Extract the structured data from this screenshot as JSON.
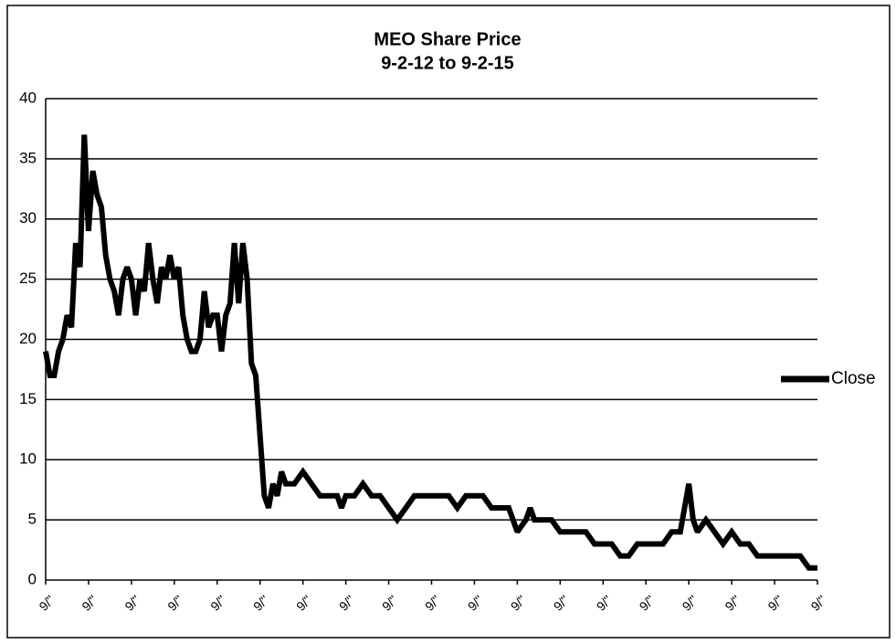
{
  "chart_data": {
    "type": "line",
    "title": "MEO Share Price",
    "subtitle": "9-2-12 to 9-2-15",
    "x": [
      0,
      0.5,
      1,
      1.5,
      2,
      2.5,
      3,
      3.5,
      4,
      4.5,
      5,
      5.5,
      6,
      6.5,
      7,
      7.5,
      8,
      8.5,
      9,
      9.5,
      10,
      10.5,
      11,
      11.5,
      12,
      12.5,
      13,
      13.5,
      14,
      14.5,
      15,
      15.5,
      16,
      16.5,
      17,
      17.5,
      18,
      18.5,
      19,
      19.5,
      20,
      20.5,
      21,
      21.5,
      22,
      22.5,
      23,
      23.5,
      24,
      24.5,
      25,
      25.5,
      26,
      26.5,
      27,
      27.5,
      28,
      29,
      30,
      31,
      32,
      33,
      34,
      34.5,
      35,
      36,
      37,
      38,
      39,
      40,
      41,
      42,
      43,
      44,
      45,
      46,
      47,
      48,
      49,
      50,
      51,
      52,
      53,
      54,
      55,
      56,
      56.5,
      57,
      58,
      59,
      60,
      61,
      62,
      63,
      64,
      65,
      66,
      67,
      68,
      69,
      70,
      71,
      72,
      73,
      74,
      75,
      75.5,
      76,
      77,
      78,
      79,
      80,
      81,
      82,
      83,
      84,
      85,
      86,
      87,
      88,
      89,
      90
    ],
    "series": [
      {
        "name": "Close",
        "color": "#000000",
        "values": [
          19,
          17,
          17,
          19,
          20,
          22,
          21,
          28,
          26,
          37,
          29,
          34,
          32,
          31,
          27,
          25,
          24,
          22,
          25,
          26,
          25,
          22,
          25,
          24,
          28,
          25,
          23,
          26,
          25,
          27,
          25,
          26,
          22,
          20,
          19,
          19,
          20,
          24,
          21,
          22,
          22,
          19,
          22,
          23,
          28,
          23,
          28,
          25,
          18,
          17,
          12,
          7,
          6,
          8,
          7,
          9,
          8,
          8,
          9,
          8,
          7,
          7,
          7,
          6,
          7,
          7,
          8,
          7,
          7,
          6,
          5,
          6,
          7,
          7,
          7,
          7,
          7,
          6,
          7,
          7,
          7,
          6,
          6,
          6,
          4,
          5,
          6,
          5,
          5,
          5,
          4,
          4,
          4,
          4,
          3,
          3,
          3,
          2,
          2,
          3,
          3,
          3,
          3,
          4,
          4,
          8,
          5,
          4,
          5,
          4,
          3,
          4,
          3,
          3,
          2,
          2,
          2,
          2,
          2,
          2,
          1,
          1
        ]
      }
    ],
    "xlim": [
      0,
      90
    ],
    "xticks": [
      {
        "value": 0,
        "label": "9/''"
      },
      {
        "value": 5,
        "label": "9/''"
      },
      {
        "value": 10,
        "label": "9/''"
      },
      {
        "value": 15,
        "label": "9/''"
      },
      {
        "value": 20,
        "label": "9/''"
      },
      {
        "value": 25,
        "label": "9/''"
      },
      {
        "value": 30,
        "label": "9/''"
      },
      {
        "value": 35,
        "label": "9/''"
      },
      {
        "value": 40,
        "label": "9/''"
      },
      {
        "value": 45,
        "label": "9/''"
      },
      {
        "value": 50,
        "label": "9/''"
      },
      {
        "value": 55,
        "label": "9/''"
      },
      {
        "value": 60,
        "label": "9/''"
      },
      {
        "value": 65,
        "label": "9/''"
      },
      {
        "value": 70,
        "label": "9/''"
      },
      {
        "value": 75,
        "label": "9/''"
      },
      {
        "value": 80,
        "label": "9/''"
      },
      {
        "value": 85,
        "label": "9/''"
      },
      {
        "value": 90,
        "label": "9/''"
      }
    ],
    "ylim": [
      0,
      40
    ],
    "yticks": [
      0,
      5,
      10,
      15,
      20,
      25,
      30,
      35,
      40
    ],
    "grid": true,
    "legend": "right"
  }
}
